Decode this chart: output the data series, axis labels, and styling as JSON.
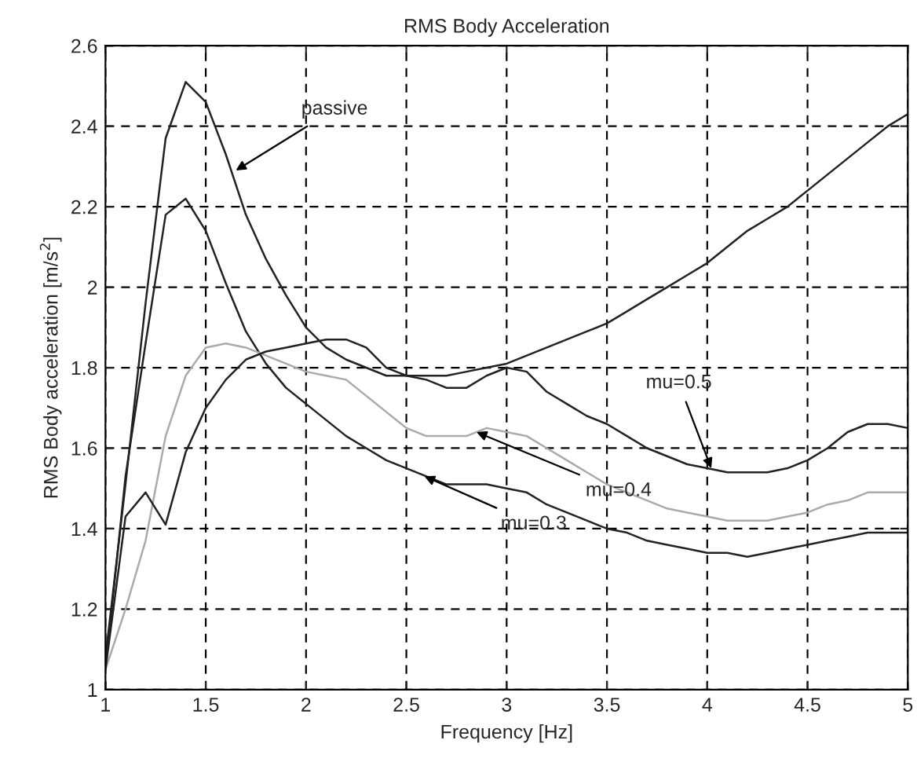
{
  "chart_data": {
    "type": "line",
    "title": "RMS Body Acceleration",
    "xlabel": "Frequency [Hz]",
    "ylabel": "RMS Body acceleration [m/s$^{2}$]",
    "x": [
      1.0,
      1.1,
      1.2,
      1.3,
      1.4,
      1.5,
      1.6,
      1.7,
      1.8,
      1.9,
      2.0,
      2.1,
      2.2,
      2.3,
      2.4,
      2.5,
      2.6,
      2.7,
      2.8,
      2.9,
      3.0,
      3.1,
      3.2,
      3.3,
      3.4,
      3.5,
      3.6,
      3.7,
      3.8,
      3.9,
      4.0,
      4.1,
      4.2,
      4.3,
      4.4,
      4.5,
      4.6,
      4.7,
      4.8,
      4.9,
      5.0
    ],
    "series": [
      {
        "color": "#222222",
        "values": [
          1.08,
          1.51,
          1.96,
          2.37,
          2.51,
          2.46,
          2.33,
          2.18,
          2.07,
          1.98,
          1.9,
          1.85,
          1.82,
          1.8,
          1.78,
          1.78,
          1.78,
          1.78,
          1.79,
          1.8,
          1.81,
          1.83,
          1.85,
          1.87,
          1.89,
          1.91,
          1.94,
          1.97,
          2.0,
          2.03,
          2.06,
          2.1,
          2.14,
          2.17,
          2.2,
          2.24,
          2.28,
          2.32,
          2.36,
          2.4,
          2.43
        ]
      },
      {
        "color": "#222222",
        "values": [
          1.05,
          1.53,
          1.86,
          2.18,
          2.22,
          2.14,
          2.01,
          1.89,
          1.81,
          1.75,
          1.71,
          1.67,
          1.63,
          1.6,
          1.57,
          1.55,
          1.53,
          1.51,
          1.51,
          1.51,
          1.5,
          1.49,
          1.46,
          1.44,
          1.42,
          1.4,
          1.39,
          1.37,
          1.36,
          1.35,
          1.34,
          1.34,
          1.33,
          1.34,
          1.35,
          1.36,
          1.37,
          1.38,
          1.39,
          1.39,
          1.39
        ]
      },
      {
        "color": "#aaaaaa",
        "values": [
          1.05,
          1.2,
          1.37,
          1.63,
          1.78,
          1.85,
          1.86,
          1.85,
          1.83,
          1.81,
          1.79,
          1.78,
          1.77,
          1.73,
          1.69,
          1.65,
          1.63,
          1.63,
          1.63,
          1.65,
          1.64,
          1.63,
          1.6,
          1.57,
          1.54,
          1.51,
          1.49,
          1.47,
          1.45,
          1.44,
          1.43,
          1.42,
          1.42,
          1.42,
          1.43,
          1.44,
          1.46,
          1.47,
          1.49,
          1.49,
          1.49
        ]
      },
      {
        "color": "#222222",
        "values": [
          1.05,
          1.43,
          1.49,
          1.41,
          1.59,
          1.7,
          1.77,
          1.82,
          1.84,
          1.85,
          1.86,
          1.87,
          1.87,
          1.85,
          1.8,
          1.78,
          1.77,
          1.75,
          1.75,
          1.78,
          1.8,
          1.79,
          1.74,
          1.71,
          1.68,
          1.66,
          1.63,
          1.6,
          1.58,
          1.56,
          1.55,
          1.54,
          1.54,
          1.54,
          1.55,
          1.57,
          1.6,
          1.64,
          1.66,
          1.66,
          1.65
        ]
      }
    ],
    "annotations": [
      {
        "text": "passive",
        "x": 1.65,
        "y": 2.29
      },
      {
        "text": "mu=0.3",
        "x": 2.59,
        "y": 1.53
      },
      {
        "text": "mu=0.4",
        "x": 2.85,
        "y": 1.64
      },
      {
        "text": "mu=0.5",
        "x": 4.02,
        "y": 1.55
      }
    ],
    "xlim": [
      1,
      5
    ],
    "ylim": [
      1,
      2.6
    ],
    "xticks": [
      1,
      1.5,
      2,
      2.5,
      3,
      3.5,
      4,
      4.5,
      5
    ],
    "yticks": [
      1,
      1.2,
      1.4,
      1.6,
      1.8,
      2,
      2.2,
      2.4,
      2.6
    ],
    "grid": true,
    "line_style": "solid",
    "marker": "none"
  }
}
